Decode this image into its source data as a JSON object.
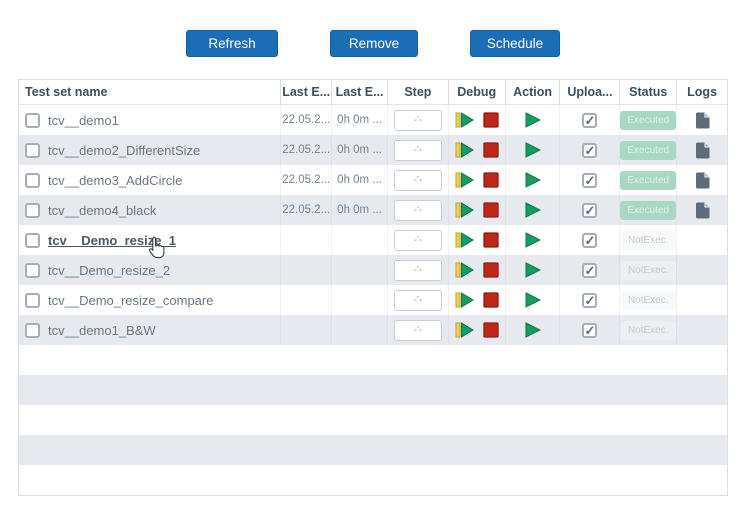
{
  "toolbar": {
    "refresh_label": "Refresh",
    "remove_label": "Remove",
    "schedule_label": "Schedule"
  },
  "colors": {
    "button_blue": "#1b6db5",
    "row_stripe": "#e6eaee",
    "header_text": "#3e4e5e",
    "play_green": "#169c62",
    "stop_red": "#bf2718",
    "debug_yellow": "#ecd04f",
    "executed_badge_bg": "#a8d8c4",
    "notexec_text": "#c6cbd0",
    "logs_icon": "#5c6c7b"
  },
  "table": {
    "headers": [
      "Test set name",
      "Last E...",
      "Last E...",
      "Step",
      "Debug",
      "Action",
      "Uploa...",
      "Status",
      "Logs"
    ],
    "step_placeholder": "-'-",
    "checkmark": "✓",
    "rows": [
      {
        "name": "tcv__demo1",
        "last_exec_date": "22.05.2...",
        "last_exec_duration": "0h 0m ...",
        "status": "Executed",
        "status_kind": "executed",
        "logs": true,
        "upload_checked": true,
        "selected": false,
        "hovered": false
      },
      {
        "name": "tcv__demo2_DifferentSize",
        "last_exec_date": "22.05.2...",
        "last_exec_duration": "0h 0m ...",
        "status": "Executed",
        "status_kind": "executed",
        "logs": true,
        "upload_checked": true,
        "selected": false,
        "hovered": false
      },
      {
        "name": "tcv__demo3_AddCircle",
        "last_exec_date": "22.05.2...",
        "last_exec_duration": "0h 0m ...",
        "status": "Executed",
        "status_kind": "executed",
        "logs": true,
        "upload_checked": true,
        "selected": false,
        "hovered": false
      },
      {
        "name": "tcv__demo4_black",
        "last_exec_date": "22.05.2...",
        "last_exec_duration": "0h 0m ...",
        "status": "Executed",
        "status_kind": "executed",
        "logs": true,
        "upload_checked": true,
        "selected": false,
        "hovered": false
      },
      {
        "name": "tcv__Demo_resize_1",
        "last_exec_date": "",
        "last_exec_duration": "",
        "status": "NotExec.",
        "status_kind": "notexec",
        "logs": false,
        "upload_checked": true,
        "selected": false,
        "hovered": true
      },
      {
        "name": "tcv__Demo_resize_2",
        "last_exec_date": "",
        "last_exec_duration": "",
        "status": "NotExec.",
        "status_kind": "notexec",
        "logs": false,
        "upload_checked": true,
        "selected": false,
        "hovered": false
      },
      {
        "name": "tcv__Demo_resize_compare",
        "last_exec_date": "",
        "last_exec_duration": "",
        "status": "NotExec.",
        "status_kind": "notexec",
        "logs": false,
        "upload_checked": true,
        "selected": false,
        "hovered": false
      },
      {
        "name": "tcv__demo1_B&W",
        "last_exec_date": "",
        "last_exec_duration": "",
        "status": "NotExec.",
        "status_kind": "notexec",
        "logs": false,
        "upload_checked": true,
        "selected": false,
        "hovered": false
      }
    ],
    "empty_filler_rows": 5
  }
}
